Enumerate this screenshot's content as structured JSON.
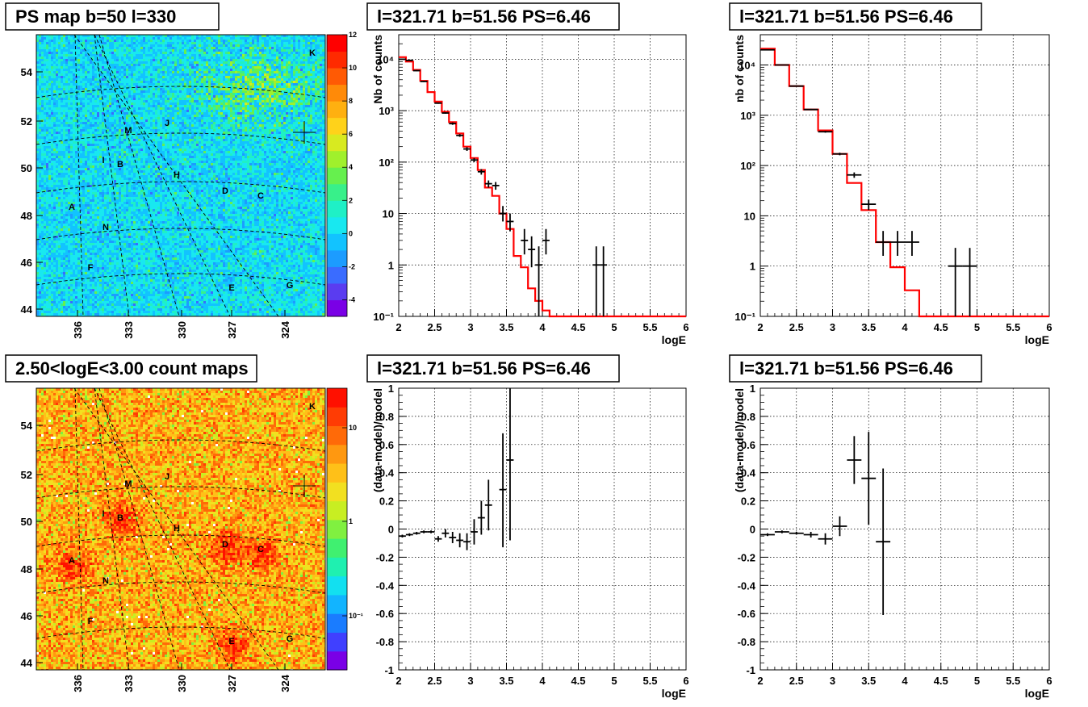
{
  "chart_data": [
    {
      "type": "heatmap",
      "title": "PS map b=50 l=330",
      "x_ticks": [
        "336",
        "333",
        "330",
        "327",
        "324"
      ],
      "y_ticks": [
        "44",
        "46",
        "48",
        "50",
        "52",
        "54"
      ],
      "colorbar": {
        "ticks": [
          "12",
          "10",
          "8",
          "6",
          "4",
          "2",
          "0",
          "-2",
          "-4"
        ],
        "range": [
          -5,
          12
        ]
      },
      "markers": [
        "A",
        "B",
        "C",
        "D",
        "E",
        "F",
        "G",
        "H",
        "I",
        "J",
        "K",
        "M",
        "N"
      ]
    },
    {
      "type": "line",
      "title": "l=321.71 b=51.56 PS=6.46",
      "xlabel": "logE",
      "ylabel": "Nb of counts",
      "y_scale": "log",
      "xlim": [
        2,
        6
      ],
      "ylim": [
        0.1,
        30000
      ],
      "x_ticks": [
        "2",
        "2.5",
        "3",
        "3.5",
        "4",
        "4.5",
        "5",
        "5.5",
        "6"
      ],
      "y_ticks": [
        "10⁻¹",
        "1",
        "10",
        "10²",
        "10³",
        "10⁴"
      ],
      "grid": true,
      "model_step": [
        [
          2.0,
          2.1,
          11000
        ],
        [
          2.1,
          2.2,
          9000
        ],
        [
          2.2,
          2.3,
          6200
        ],
        [
          2.3,
          2.4,
          3800
        ],
        [
          2.4,
          2.5,
          2300
        ],
        [
          2.5,
          2.6,
          1500
        ],
        [
          2.6,
          2.7,
          950
        ],
        [
          2.7,
          2.8,
          600
        ],
        [
          2.8,
          2.9,
          360
        ],
        [
          2.9,
          3.0,
          200
        ],
        [
          3.0,
          3.1,
          120
        ],
        [
          3.1,
          3.2,
          70
        ],
        [
          3.2,
          3.3,
          32
        ],
        [
          3.3,
          3.4,
          22
        ],
        [
          3.4,
          3.5,
          10
        ],
        [
          3.5,
          3.6,
          5
        ],
        [
          3.6,
          3.7,
          1.5
        ],
        [
          3.7,
          3.8,
          0.9
        ],
        [
          3.8,
          3.9,
          0.35
        ],
        [
          3.9,
          4.0,
          0.2
        ],
        [
          4.0,
          4.1,
          0.13
        ],
        [
          4.1,
          4.2,
          0.1
        ],
        [
          4.2,
          6.0,
          0.1
        ]
      ],
      "data_points": [
        {
          "x": 2.05,
          "y": 10000,
          "xerr": 0.05,
          "ylo": 9800,
          "yhi": 10200
        },
        {
          "x": 2.15,
          "y": 9500,
          "xerr": 0.05,
          "ylo": 9300,
          "yhi": 9700
        },
        {
          "x": 2.25,
          "y": 6000,
          "xerr": 0.05,
          "ylo": 5850,
          "yhi": 6150
        },
        {
          "x": 2.35,
          "y": 3700,
          "xerr": 0.05,
          "ylo": 3600,
          "yhi": 3800
        },
        {
          "x": 2.55,
          "y": 1400,
          "xerr": 0.05,
          "ylo": 1360,
          "yhi": 1440
        },
        {
          "x": 2.65,
          "y": 900,
          "xerr": 0.05,
          "ylo": 870,
          "yhi": 930
        },
        {
          "x": 2.75,
          "y": 560,
          "xerr": 0.05,
          "ylo": 530,
          "yhi": 590
        },
        {
          "x": 2.85,
          "y": 330,
          "xerr": 0.05,
          "ylo": 310,
          "yhi": 350
        },
        {
          "x": 2.95,
          "y": 180,
          "xerr": 0.05,
          "ylo": 165,
          "yhi": 195
        },
        {
          "x": 3.05,
          "y": 110,
          "xerr": 0.05,
          "ylo": 100,
          "yhi": 120
        },
        {
          "x": 3.15,
          "y": 65,
          "xerr": 0.05,
          "ylo": 57,
          "yhi": 73
        },
        {
          "x": 3.25,
          "y": 38,
          "xerr": 0.05,
          "ylo": 32,
          "yhi": 44
        },
        {
          "x": 3.35,
          "y": 35,
          "xerr": 0.05,
          "ylo": 29,
          "yhi": 41
        },
        {
          "x": 3.45,
          "y": 10,
          "xerr": 0.05,
          "ylo": 7,
          "yhi": 14
        },
        {
          "x": 3.55,
          "y": 7,
          "xerr": 0.05,
          "ylo": 4.5,
          "yhi": 10
        },
        {
          "x": 3.75,
          "y": 3,
          "xerr": 0.05,
          "ylo": 1.6,
          "yhi": 5
        },
        {
          "x": 3.85,
          "y": 2,
          "xerr": 0.05,
          "ylo": 0.9,
          "yhi": 3.6
        },
        {
          "x": 3.95,
          "y": 1,
          "xerr": 0.05,
          "ylo": 0.1,
          "yhi": 2.3
        },
        {
          "x": 4.05,
          "y": 3,
          "xerr": 0.05,
          "ylo": 1.6,
          "yhi": 5
        },
        {
          "x": 4.75,
          "y": 1,
          "xerr": 0.05,
          "ylo": 0.1,
          "yhi": 2.3
        },
        {
          "x": 4.85,
          "y": 1,
          "xerr": 0.05,
          "ylo": 0.1,
          "yhi": 2.3
        }
      ]
    },
    {
      "type": "line",
      "title": "l=321.71 b=51.56 PS=6.46",
      "xlabel": "logE",
      "ylabel": "nb of counts",
      "y_scale": "log",
      "xlim": [
        2,
        6
      ],
      "ylim": [
        0.1,
        40000
      ],
      "x_ticks": [
        "2",
        "2.5",
        "3",
        "3.5",
        "4",
        "4.5",
        "5",
        "5.5",
        "6"
      ],
      "y_ticks": [
        "10⁻¹",
        "1",
        "10",
        "10²",
        "10³",
        "10⁴"
      ],
      "grid": true,
      "model_step": [
        [
          2.0,
          2.2,
          21000
        ],
        [
          2.2,
          2.4,
          10000
        ],
        [
          2.4,
          2.6,
          3800
        ],
        [
          2.6,
          2.8,
          1300
        ],
        [
          2.8,
          3.0,
          500
        ],
        [
          3.0,
          3.2,
          170
        ],
        [
          3.2,
          3.4,
          45
        ],
        [
          3.4,
          3.6,
          13
        ],
        [
          3.6,
          3.8,
          3
        ],
        [
          3.8,
          4.0,
          0.95
        ],
        [
          4.0,
          4.2,
          0.33
        ],
        [
          4.2,
          6.0,
          0.1
        ]
      ],
      "data_points": [
        {
          "x": 2.1,
          "y": 20000,
          "xerr": 0.1,
          "ylo": 19700,
          "yhi": 20300
        },
        {
          "x": 2.3,
          "y": 10000,
          "xerr": 0.1,
          "ylo": 9800,
          "yhi": 10200
        },
        {
          "x": 2.5,
          "y": 3800,
          "xerr": 0.1,
          "ylo": 3700,
          "yhi": 3900
        },
        {
          "x": 2.7,
          "y": 1300,
          "xerr": 0.1,
          "ylo": 1260,
          "yhi": 1340
        },
        {
          "x": 2.9,
          "y": 470,
          "xerr": 0.1,
          "ylo": 450,
          "yhi": 490
        },
        {
          "x": 3.1,
          "y": 170,
          "xerr": 0.1,
          "ylo": 160,
          "yhi": 180
        },
        {
          "x": 3.3,
          "y": 65,
          "xerr": 0.1,
          "ylo": 57,
          "yhi": 73
        },
        {
          "x": 3.5,
          "y": 17,
          "xerr": 0.1,
          "ylo": 13,
          "yhi": 21
        },
        {
          "x": 3.7,
          "y": 3,
          "xerr": 0.1,
          "ylo": 1.6,
          "yhi": 5
        },
        {
          "x": 3.9,
          "y": 3,
          "xerr": 0.1,
          "ylo": 1.6,
          "yhi": 5
        },
        {
          "x": 4.1,
          "y": 3,
          "xerr": 0.1,
          "ylo": 1.6,
          "yhi": 5
        },
        {
          "x": 4.7,
          "y": 1,
          "xerr": 0.1,
          "ylo": 0.1,
          "yhi": 2.3
        },
        {
          "x": 4.9,
          "y": 1,
          "xerr": 0.1,
          "ylo": 0.1,
          "yhi": 2.3
        }
      ]
    },
    {
      "type": "heatmap",
      "title": "2.50<logE<3.00 count maps",
      "x_ticks": [
        "336",
        "333",
        "330",
        "327",
        "324"
      ],
      "y_ticks": [
        "44",
        "46",
        "48",
        "50",
        "52",
        "54"
      ],
      "colorbar": {
        "ticks": [
          "10",
          "1",
          "10⁻¹"
        ],
        "scale": "log"
      },
      "markers": [
        "A",
        "B",
        "C",
        "D",
        "E",
        "F",
        "G",
        "H",
        "I",
        "J",
        "K",
        "M",
        "N"
      ]
    },
    {
      "type": "scatter",
      "title": "l=321.71 b=51.56 PS=6.46",
      "xlabel": "logE",
      "ylabel": "(data-model)/model",
      "xlim": [
        2,
        6
      ],
      "ylim": [
        -1,
        1
      ],
      "x_ticks": [
        "2",
        "2.5",
        "3",
        "3.5",
        "4",
        "4.5",
        "5",
        "5.5",
        "6"
      ],
      "y_ticks": [
        "-1",
        "-0.8",
        "-0.6",
        "-0.4",
        "-0.2",
        "0",
        "0.2",
        "0.4",
        "0.6",
        "0.8",
        "1"
      ],
      "grid": true,
      "data_points": [
        {
          "x": 2.05,
          "y": -0.05,
          "xerr": 0.05,
          "ylo": -0.06,
          "yhi": -0.04
        },
        {
          "x": 2.15,
          "y": -0.04,
          "xerr": 0.05,
          "ylo": -0.05,
          "yhi": -0.03
        },
        {
          "x": 2.25,
          "y": -0.03,
          "xerr": 0.05,
          "ylo": -0.04,
          "yhi": -0.02
        },
        {
          "x": 2.35,
          "y": -0.02,
          "xerr": 0.05,
          "ylo": -0.03,
          "yhi": -0.01
        },
        {
          "x": 2.45,
          "y": -0.02,
          "xerr": 0.05,
          "ylo": -0.03,
          "yhi": -0.01
        },
        {
          "x": 2.55,
          "y": -0.07,
          "xerr": 0.05,
          "ylo": -0.09,
          "yhi": -0.05
        },
        {
          "x": 2.65,
          "y": -0.03,
          "xerr": 0.05,
          "ylo": -0.06,
          "yhi": 0.0
        },
        {
          "x": 2.75,
          "y": -0.06,
          "xerr": 0.05,
          "ylo": -0.1,
          "yhi": -0.02
        },
        {
          "x": 2.85,
          "y": -0.08,
          "xerr": 0.05,
          "ylo": -0.13,
          "yhi": -0.03
        },
        {
          "x": 2.95,
          "y": -0.09,
          "xerr": 0.05,
          "ylo": -0.15,
          "yhi": -0.03
        },
        {
          "x": 3.05,
          "y": -0.02,
          "xerr": 0.05,
          "ylo": -0.11,
          "yhi": 0.07
        },
        {
          "x": 3.15,
          "y": 0.08,
          "xerr": 0.05,
          "ylo": -0.04,
          "yhi": 0.2
        },
        {
          "x": 3.25,
          "y": 0.17,
          "xerr": 0.05,
          "ylo": -0.01,
          "yhi": 0.35
        },
        {
          "x": 3.45,
          "y": 0.28,
          "xerr": 0.05,
          "ylo": -0.13,
          "yhi": 0.68
        },
        {
          "x": 3.55,
          "y": 0.49,
          "xerr": 0.05,
          "ylo": -0.08,
          "yhi": 1.0
        }
      ]
    },
    {
      "type": "scatter",
      "title": "l=321.71 b=51.56 PS=6.46",
      "xlabel": "logE",
      "ylabel": "(data-model)/model",
      "xlim": [
        2,
        6
      ],
      "ylim": [
        -1,
        1
      ],
      "x_ticks": [
        "2",
        "2.5",
        "3",
        "3.5",
        "4",
        "4.5",
        "5",
        "5.5",
        "6"
      ],
      "y_ticks": [
        "-1",
        "-0.8",
        "-0.6",
        "-0.4",
        "-0.2",
        "0",
        "0.2",
        "0.4",
        "0.6",
        "0.8",
        "1"
      ],
      "grid": true,
      "data_points": [
        {
          "x": 2.1,
          "y": -0.04,
          "xerr": 0.1,
          "ylo": -0.05,
          "yhi": -0.03
        },
        {
          "x": 2.3,
          "y": -0.02,
          "xerr": 0.1,
          "ylo": -0.03,
          "yhi": -0.01
        },
        {
          "x": 2.5,
          "y": -0.03,
          "xerr": 0.1,
          "ylo": -0.04,
          "yhi": -0.02
        },
        {
          "x": 2.7,
          "y": -0.04,
          "xerr": 0.1,
          "ylo": -0.06,
          "yhi": -0.02
        },
        {
          "x": 2.9,
          "y": -0.07,
          "xerr": 0.1,
          "ylo": -0.11,
          "yhi": -0.03
        },
        {
          "x": 3.1,
          "y": 0.02,
          "xerr": 0.1,
          "ylo": -0.05,
          "yhi": 0.09
        },
        {
          "x": 3.3,
          "y": 0.49,
          "xerr": 0.1,
          "ylo": 0.32,
          "yhi": 0.66
        },
        {
          "x": 3.5,
          "y": 0.36,
          "xerr": 0.1,
          "ylo": 0.03,
          "yhi": 0.69
        },
        {
          "x": 3.7,
          "y": -0.09,
          "xerr": 0.1,
          "ylo": -0.61,
          "yhi": 0.43
        }
      ]
    }
  ]
}
